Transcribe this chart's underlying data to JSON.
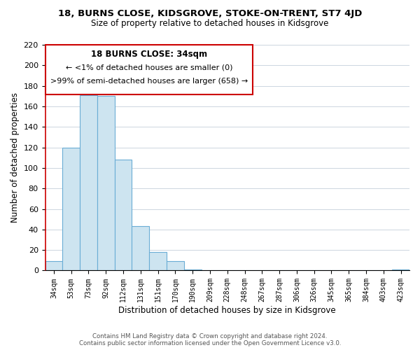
{
  "title": "18, BURNS CLOSE, KIDSGROVE, STOKE-ON-TRENT, ST7 4JD",
  "subtitle": "Size of property relative to detached houses in Kidsgrove",
  "xlabel": "Distribution of detached houses by size in Kidsgrove",
  "ylabel": "Number of detached properties",
  "bin_labels": [
    "34sqm",
    "53sqm",
    "73sqm",
    "92sqm",
    "112sqm",
    "131sqm",
    "151sqm",
    "170sqm",
    "190sqm",
    "209sqm",
    "228sqm",
    "248sqm",
    "267sqm",
    "287sqm",
    "306sqm",
    "326sqm",
    "345sqm",
    "365sqm",
    "384sqm",
    "403sqm",
    "423sqm"
  ],
  "bar_values": [
    9,
    120,
    171,
    170,
    108,
    43,
    18,
    9,
    1,
    0,
    0,
    0,
    0,
    0,
    0,
    0,
    0,
    0,
    0,
    0,
    1
  ],
  "bar_color": "#cde4f0",
  "bar_edge_color": "#6aadd5",
  "annotation_title": "18 BURNS CLOSE: 34sqm",
  "annotation_line1": "← <1% of detached houses are smaller (0)",
  "annotation_line2": ">99% of semi-detached houses are larger (658) →",
  "annotation_box_color": "#ffffff",
  "annotation_box_edge_color": "#cc0000",
  "ylim": [
    0,
    220
  ],
  "yticks": [
    0,
    20,
    40,
    60,
    80,
    100,
    120,
    140,
    160,
    180,
    200,
    220
  ],
  "footer_line1": "Contains HM Land Registry data © Crown copyright and database right 2024.",
  "footer_line2": "Contains public sector information licensed under the Open Government Licence v3.0.",
  "background_color": "#ffffff",
  "grid_color": "#ccd5e0"
}
